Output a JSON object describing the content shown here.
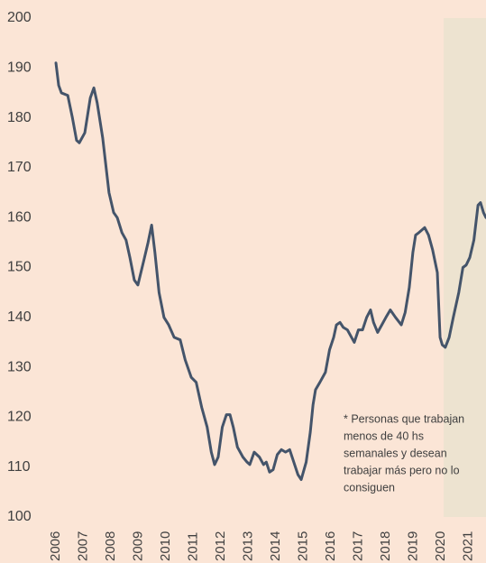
{
  "chart_data": {
    "type": "line",
    "x": [
      2006.0,
      2006.1,
      2006.2,
      2006.43,
      2006.6,
      2006.75,
      2006.85,
      2007.05,
      2007.25,
      2007.38,
      2007.5,
      2007.7,
      2007.93,
      2008.1,
      2008.23,
      2008.4,
      2008.55,
      2008.69,
      2008.85,
      2008.98,
      2009.2,
      2009.35,
      2009.48,
      2009.6,
      2009.75,
      2009.93,
      2010.1,
      2010.3,
      2010.52,
      2010.7,
      2010.92,
      2011.1,
      2011.3,
      2011.5,
      2011.65,
      2011.77,
      2011.9,
      2012.05,
      2012.2,
      2012.33,
      2012.45,
      2012.6,
      2012.8,
      2012.95,
      2013.05,
      2013.21,
      2013.4,
      2013.55,
      2013.65,
      2013.77,
      2013.9,
      2014.05,
      2014.2,
      2014.35,
      2014.5,
      2014.65,
      2014.8,
      2014.92,
      2015.1,
      2015.25,
      2015.35,
      2015.44,
      2015.6,
      2015.8,
      2015.95,
      2016.1,
      2016.2,
      2016.33,
      2016.45,
      2016.6,
      2016.75,
      2016.85,
      2017.0,
      2017.15,
      2017.3,
      2017.44,
      2017.55,
      2017.7,
      2017.85,
      2018.0,
      2018.16,
      2018.35,
      2018.56,
      2018.7,
      2018.85,
      2018.98,
      2019.08,
      2019.2,
      2019.41,
      2019.55,
      2019.7,
      2019.87,
      2019.97,
      2020.05,
      2020.16,
      2020.3,
      2020.45,
      2020.65,
      2020.8,
      2020.92,
      2021.05,
      2021.2,
      2021.35,
      2021.44,
      2021.55,
      2021.64
    ],
    "series": [
      {
        "color": "#44546a",
        "values": [
          191,
          186.5,
          185,
          184.5,
          180,
          175.5,
          175,
          177,
          184,
          186,
          183,
          176,
          165,
          161,
          160,
          157,
          155.5,
          152,
          147.5,
          146.5,
          151.5,
          155,
          158.5,
          153,
          145,
          140,
          138.5,
          136,
          135.5,
          131.5,
          128,
          127,
          122,
          118,
          113,
          110.5,
          112,
          118,
          120.5,
          120.5,
          118,
          114,
          112,
          111,
          110.5,
          113,
          112,
          110.5,
          111,
          109,
          109.5,
          112.5,
          113.5,
          113,
          113.5,
          111,
          108.5,
          107.5,
          111,
          117,
          122.5,
          125.5,
          127,
          129,
          133.5,
          136,
          138.5,
          139,
          138,
          137.5,
          136,
          135,
          137.5,
          137.5,
          140,
          141.5,
          139,
          137,
          138.5,
          140,
          141.5,
          140,
          138.5,
          141,
          146,
          153,
          156.5,
          157,
          158,
          156.5,
          153.5,
          149,
          136,
          134.5,
          134,
          136,
          140,
          145,
          150,
          150.5,
          152,
          155.5,
          162.5,
          163,
          161,
          160
        ]
      }
    ],
    "xlim": [
      2005.54,
      2021.64
    ],
    "xticks": [
      2006,
      2007,
      2008,
      2009,
      2010,
      2011,
      2012,
      2013,
      2014,
      2015,
      2016,
      2017,
      2018,
      2019,
      2020,
      2021
    ],
    "ylim": [
      100,
      200
    ],
    "yticks": [
      100,
      110,
      120,
      130,
      140,
      150,
      160,
      170,
      180,
      190,
      200
    ],
    "grid": false,
    "shaded_region": {
      "xmin": 2020.1,
      "xmax": 2021.64,
      "color": "#ede3d0"
    },
    "annotation": [
      "* Personas que trabajan",
      "menos de 40 hs",
      "semanales y desean",
      "trabajar más pero no lo",
      "consiguen"
    ]
  }
}
